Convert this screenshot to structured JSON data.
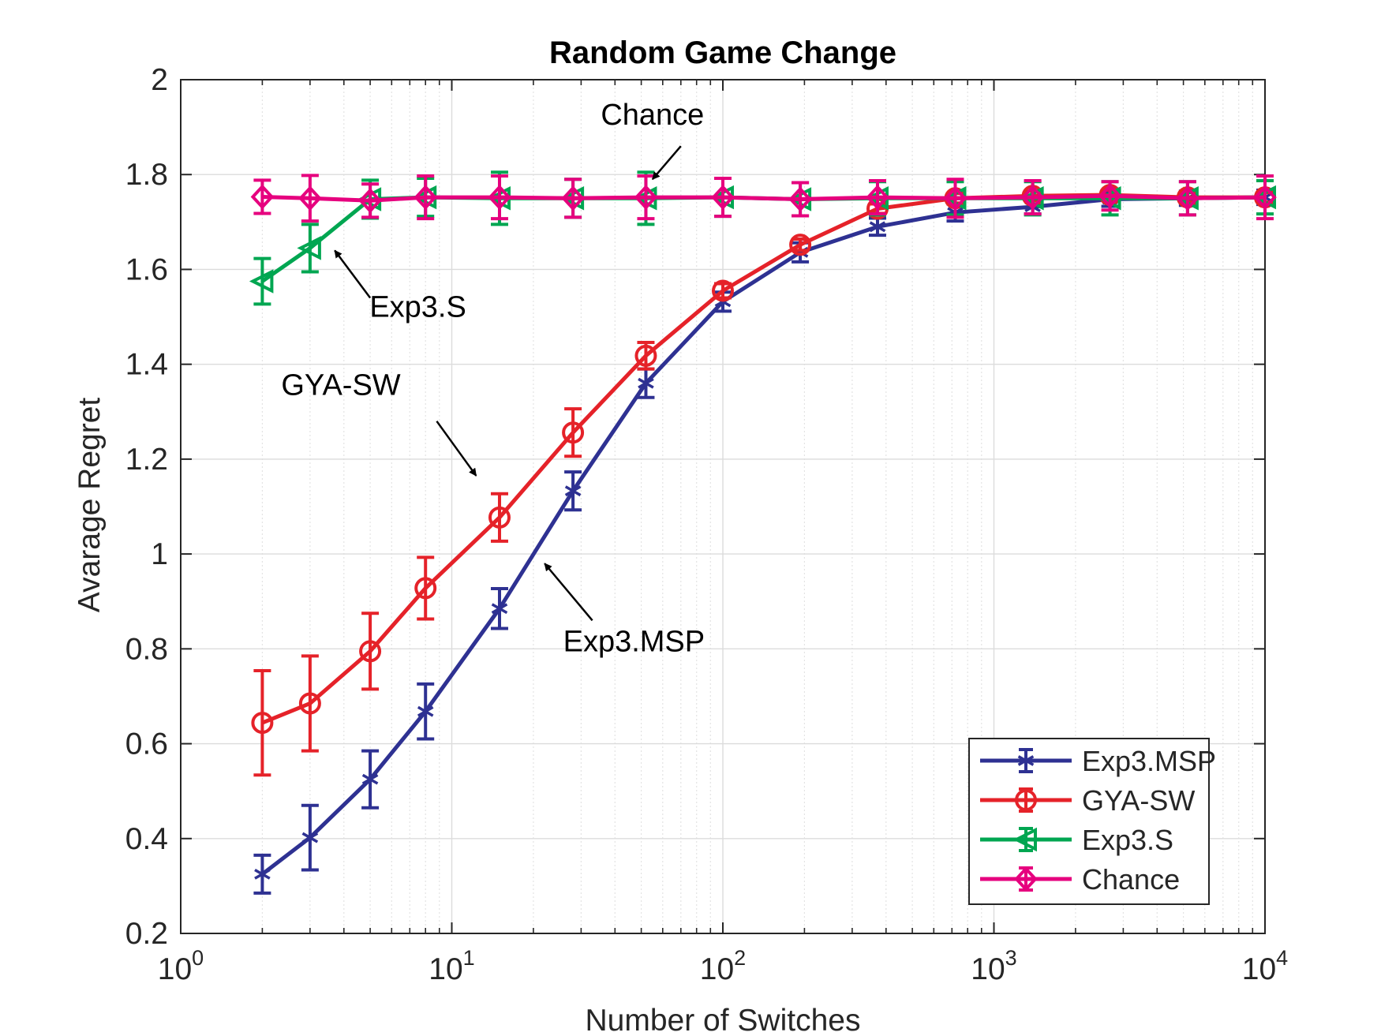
{
  "chart_data": {
    "type": "line",
    "title": "Random Game Change",
    "xlabel": "Number of Switches",
    "ylabel": "Avarage Regret",
    "xscale": "log",
    "xlim": [
      1,
      10000
    ],
    "ylim": [
      0.2,
      2
    ],
    "grid": true,
    "legend_position": "bottom-right",
    "x_ticks": [
      {
        "value": 1,
        "base": "10",
        "exp": "0"
      },
      {
        "value": 10,
        "base": "10",
        "exp": "1"
      },
      {
        "value": 100,
        "base": "10",
        "exp": "2"
      },
      {
        "value": 1000,
        "base": "10",
        "exp": "3"
      },
      {
        "value": 10000,
        "base": "10",
        "exp": "4"
      }
    ],
    "y_ticks": [
      {
        "value": 0.2,
        "label": "0.2"
      },
      {
        "value": 0.4,
        "label": "0.4"
      },
      {
        "value": 0.6,
        "label": "0.6"
      },
      {
        "value": 0.8,
        "label": "0.8"
      },
      {
        "value": 1.0,
        "label": "1"
      },
      {
        "value": 1.2,
        "label": "1.2"
      },
      {
        "value": 1.4,
        "label": "1.4"
      },
      {
        "value": 1.6,
        "label": "1.6"
      },
      {
        "value": 1.8,
        "label": "1.8"
      },
      {
        "value": 2.0,
        "label": "2"
      }
    ],
    "x": [
      2,
      3,
      5,
      8,
      15,
      28,
      52,
      100,
      193,
      372,
      720,
      1390,
      2680,
      5180,
      10000
    ],
    "series": [
      {
        "name": "Exp3.MSP",
        "color": "#2e3192",
        "marker": "asterisk",
        "values": [
          0.325,
          0.402,
          0.525,
          0.668,
          0.885,
          1.133,
          1.36,
          1.532,
          1.636,
          1.69,
          1.72,
          1.732,
          1.748,
          1.75,
          1.752
        ],
        "errors": [
          0.04,
          0.068,
          0.06,
          0.058,
          0.042,
          0.04,
          0.03,
          0.02,
          0.02,
          0.018,
          0.018,
          0.015,
          0.015,
          0.015,
          0.015
        ]
      },
      {
        "name": "GYA-SW",
        "color": "#e52229",
        "marker": "circle",
        "values": [
          0.644,
          0.685,
          0.795,
          0.928,
          1.077,
          1.256,
          1.418,
          1.555,
          1.652,
          1.728,
          1.75,
          1.755,
          1.757,
          1.752,
          1.752
        ],
        "errors": [
          0.11,
          0.1,
          0.08,
          0.065,
          0.05,
          0.05,
          0.028,
          0.015,
          0.012,
          0.01,
          0.01,
          0.01,
          0.01,
          0.01,
          0.01
        ]
      },
      {
        "name": "Exp3.S",
        "color": "#00a651",
        "marker": "triangle-left",
        "values": [
          1.575,
          1.645,
          1.748,
          1.752,
          1.75,
          1.75,
          1.75,
          1.752,
          1.748,
          1.75,
          1.75,
          1.75,
          1.75,
          1.75,
          1.752
        ],
        "errors": [
          0.048,
          0.05,
          0.04,
          0.04,
          0.055,
          0.04,
          0.055,
          0.04,
          0.035,
          0.035,
          0.035,
          0.035,
          0.035,
          0.035,
          0.035
        ]
      },
      {
        "name": "Chance",
        "color": "#e6007e",
        "marker": "diamond",
        "values": [
          1.753,
          1.75,
          1.745,
          1.752,
          1.752,
          1.75,
          1.752,
          1.752,
          1.748,
          1.752,
          1.75,
          1.752,
          1.755,
          1.75,
          1.752
        ],
        "errors": [
          0.035,
          0.048,
          0.035,
          0.045,
          0.045,
          0.04,
          0.045,
          0.04,
          0.035,
          0.035,
          0.04,
          0.035,
          0.03,
          0.035,
          0.045
        ]
      }
    ],
    "annotations": [
      {
        "id": "chance",
        "text": "Chance",
        "text_x": 55,
        "text_y": 1.905,
        "arrow_from": [
          70,
          1.86
        ],
        "arrow_to": [
          55,
          1.79
        ]
      },
      {
        "id": "exp3s",
        "text": "Exp3.S",
        "text_x": 7.5,
        "text_y": 1.5,
        "arrow_from": [
          5,
          1.54
        ],
        "arrow_to": [
          3.7,
          1.64
        ]
      },
      {
        "id": "gyasw",
        "text": "GYA-SW",
        "text_x": 3.9,
        "text_y": 1.335,
        "arrow_from": [
          8.8,
          1.28
        ],
        "arrow_to": [
          12.3,
          1.165
        ]
      },
      {
        "id": "exp3msp",
        "text": "Exp3.MSP",
        "text_x": 47,
        "text_y": 0.795,
        "arrow_from": [
          33,
          0.86
        ],
        "arrow_to": [
          22,
          0.98
        ]
      }
    ]
  }
}
